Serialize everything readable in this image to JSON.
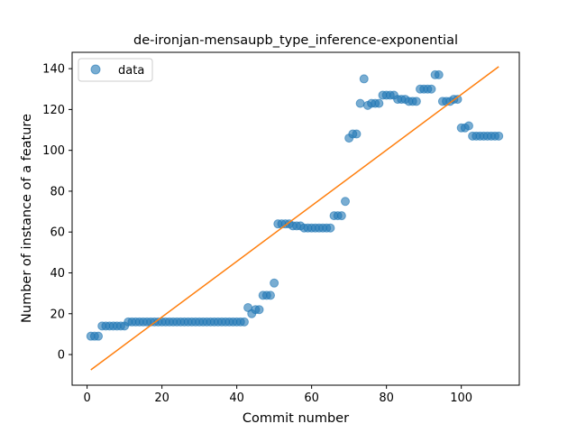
{
  "chart_data": {
    "type": "scatter",
    "title": "de-ironjan-mensaupb_type_inference-exponential",
    "xlabel": "Commit number",
    "ylabel": "Number of instance of a feature",
    "xlim": [
      -4,
      115.5
    ],
    "ylim": [
      -15,
      148
    ],
    "xticks": [
      0,
      20,
      40,
      60,
      80,
      100
    ],
    "yticks": [
      0,
      20,
      40,
      60,
      80,
      100,
      120,
      140
    ],
    "grid": false,
    "legend": {
      "position": "top-left",
      "entries": [
        "data"
      ]
    },
    "colors": {
      "data": "#1f77b4",
      "fit": "#ff7f0e"
    },
    "series": [
      {
        "name": "data",
        "kind": "scatter",
        "x": [
          1,
          2,
          3,
          4,
          5,
          6,
          7,
          8,
          9,
          10,
          11,
          12,
          13,
          14,
          15,
          16,
          17,
          18,
          19,
          20,
          21,
          22,
          23,
          24,
          25,
          26,
          27,
          28,
          29,
          30,
          31,
          32,
          33,
          34,
          35,
          36,
          37,
          38,
          39,
          40,
          41,
          42,
          43,
          44,
          45,
          46,
          47,
          48,
          49,
          50,
          51,
          52,
          53,
          54,
          55,
          56,
          57,
          58,
          59,
          60,
          61,
          62,
          63,
          64,
          65,
          66,
          67,
          68,
          69,
          70,
          71,
          72,
          73,
          74,
          75,
          76,
          77,
          78,
          79,
          80,
          81,
          82,
          83,
          84,
          85,
          86,
          87,
          88,
          89,
          90,
          91,
          92,
          93,
          94,
          95,
          96,
          97,
          98,
          99,
          100,
          101,
          102,
          103,
          104,
          105,
          106,
          107,
          108,
          109,
          110
        ],
        "y": [
          9,
          9,
          9,
          14,
          14,
          14,
          14,
          14,
          14,
          14,
          16,
          16,
          16,
          16,
          16,
          16,
          16,
          16,
          16,
          16,
          16,
          16,
          16,
          16,
          16,
          16,
          16,
          16,
          16,
          16,
          16,
          16,
          16,
          16,
          16,
          16,
          16,
          16,
          16,
          16,
          16,
          16,
          23,
          20,
          22,
          22,
          29,
          29,
          29,
          35,
          64,
          64,
          64,
          64,
          63,
          63,
          63,
          62,
          62,
          62,
          62,
          62,
          62,
          62,
          62,
          68,
          68,
          68,
          75,
          106,
          108,
          108,
          123,
          135,
          122,
          123,
          123,
          123,
          127,
          127,
          127,
          127,
          125,
          125,
          125,
          124,
          124,
          124,
          130,
          130,
          130,
          130,
          137,
          137,
          124,
          124,
          124,
          125,
          125,
          111,
          111,
          112,
          107,
          107,
          107,
          107,
          107,
          107,
          107,
          107
        ]
      },
      {
        "name": "",
        "kind": "line",
        "x": [
          1,
          110
        ],
        "y": [
          -7.5,
          141
        ]
      }
    ]
  }
}
